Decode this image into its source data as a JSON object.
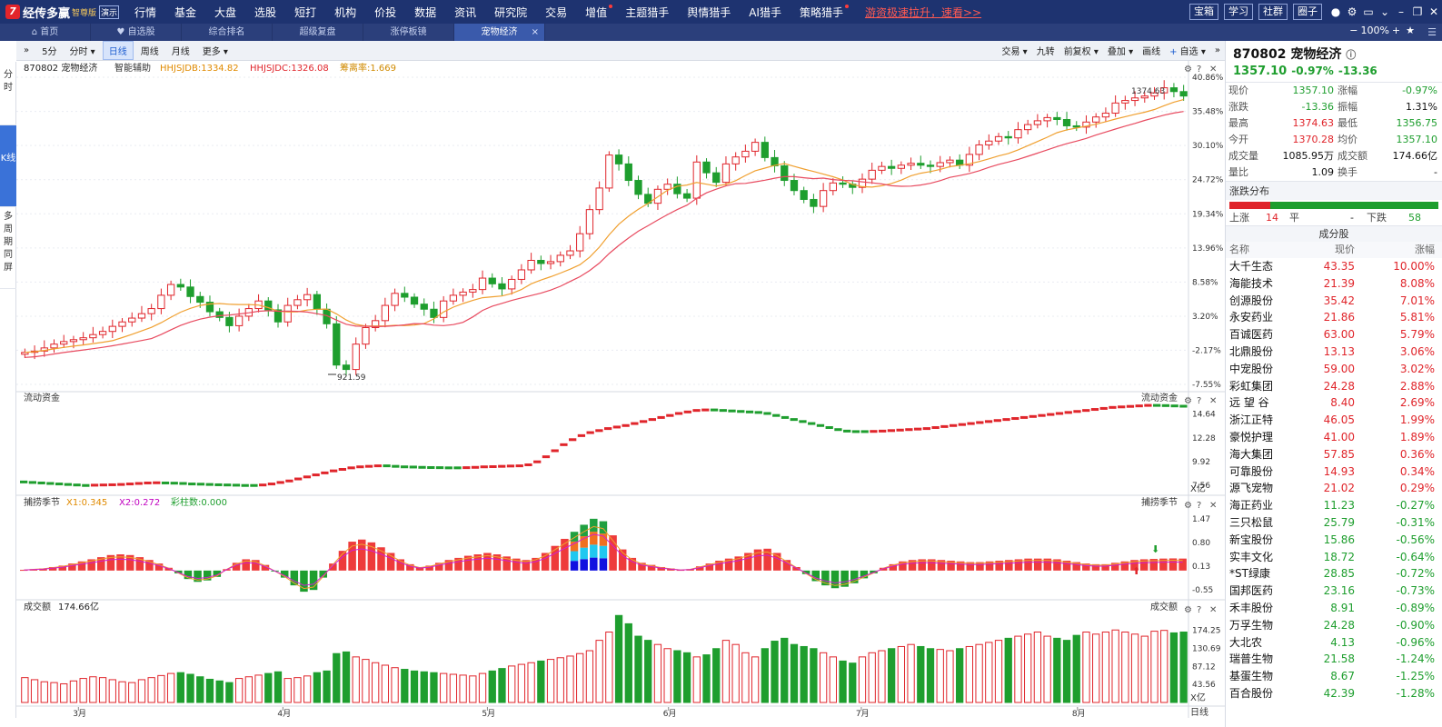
{
  "app": {
    "logo_mark": "7",
    "name": "经传多赢",
    "edition": "智尊版",
    "demo": "演示",
    "nav": [
      "行情",
      "基金",
      "大盘",
      "选股",
      "短打",
      "机构",
      "价投",
      "数据",
      "资讯",
      "研究院",
      "交易",
      "增值",
      "主题猎手",
      "舆情猎手",
      "AI猎手",
      "策略猎手"
    ],
    "promo": "游资极速拉升，速看>>",
    "right_buttons": [
      "宝箱",
      "学习",
      "社群",
      "圈子"
    ],
    "zoom": "100%"
  },
  "tabs": [
    {
      "label": "首页",
      "icon": "home-icon"
    },
    {
      "label": "自选股",
      "icon": "heart-icon"
    },
    {
      "label": "综合排名"
    },
    {
      "label": "超级复盘"
    },
    {
      "label": "涨停板镜"
    },
    {
      "label": "宠物经济",
      "active": true,
      "close": "×"
    }
  ],
  "left_tabs": [
    "分时",
    "K线",
    "多周期同屏"
  ],
  "chart_toolbar": {
    "left": [
      "5分",
      "分时",
      "日线",
      "周线",
      "月线",
      "更多"
    ],
    "right": [
      "交易",
      "九转",
      "前复权",
      "叠加",
      "画线",
      "自选"
    ]
  },
  "main_panel": {
    "code_name": "870802 宠物经济",
    "helper": "智能辅助",
    "ind1": "HHJSJDB:1334.82",
    "ind2": "HHJSJDC:1326.08",
    "ind3": "筹离率:1.669",
    "y_ticks": [
      "40.86%",
      "35.48%",
      "30.10%",
      "24.72%",
      "19.34%",
      "13.96%",
      "8.58%",
      "3.20%",
      "-2.17%",
      "-7.55%"
    ],
    "high_label": "1374.63",
    "low_label": "921.59"
  },
  "flow_panel": {
    "title": "流动资金",
    "title_right": "流动资金",
    "y_ticks": [
      "14.64",
      "12.28",
      "9.92",
      "7.56"
    ],
    "unit": "X亿"
  },
  "season_panel": {
    "title": "捕捞季节",
    "x1": "X1:0.345",
    "x2": "X2:0.272",
    "cz": "彩柱数:0.000",
    "title_right": "捕捞季节",
    "y_ticks": [
      "1.47",
      "0.80",
      "0.13",
      "-0.55"
    ]
  },
  "volume_panel": {
    "title": "成交额",
    "value": "174.66亿",
    "title_right": "成交额",
    "y_ticks": [
      "174.25",
      "130.69",
      "87.12",
      "43.56"
    ],
    "unit": "X亿"
  },
  "x_axis": {
    "months": [
      "3月",
      "4月",
      "5月",
      "6月",
      "7月",
      "8月"
    ],
    "period": "日线"
  },
  "chart_data": {
    "type": "candlestick",
    "x_label_months": [
      "3月",
      "4月",
      "5月",
      "6月",
      "7月",
      "8月"
    ],
    "price_axis_percent": [
      40.86,
      35.48,
      30.1,
      24.72,
      19.34,
      13.96,
      8.58,
      3.2,
      -2.17,
      -7.55
    ],
    "max_price": 1374.63,
    "min_price": 921.59,
    "candles_close_pct": [
      -2.5,
      -2.3,
      -1.8,
      -1.2,
      -0.8,
      -0.5,
      -0.2,
      0.3,
      0.8,
      1.6,
      2.3,
      2.9,
      3.6,
      4.4,
      6.5,
      8.2,
      7.8,
      6.3,
      5.4,
      3.9,
      3.0,
      1.7,
      3.2,
      4.4,
      5.6,
      4.2,
      2.3,
      4.9,
      5.8,
      6.6,
      4.3,
      2.0,
      -4.5,
      -5.2,
      -1.2,
      1.4,
      2.5,
      4.9,
      6.8,
      6.2,
      5.1,
      4.3,
      3.0,
      5.6,
      6.5,
      7.0,
      7.4,
      9.2,
      8.3,
      7.5,
      9.0,
      10.5,
      12.0,
      11.5,
      11.8,
      12.8,
      13.5,
      16.2,
      20.0,
      23.4,
      28.6,
      27.2,
      24.6,
      22.4,
      21.0,
      23.2,
      24.0,
      22.5,
      21.8,
      27.5,
      25.8,
      24.3,
      27.2,
      28.3,
      29.2,
      30.6,
      28.2,
      26.9,
      24.6,
      23.0,
      21.6,
      20.5,
      23.0,
      24.2,
      24.0,
      23.5,
      24.8,
      26.2,
      26.8,
      26.5,
      27.0,
      27.3,
      27.0,
      26.8,
      27.4,
      27.8,
      27.0,
      28.7,
      30.2,
      30.8,
      31.5,
      31.3,
      32.6,
      33.4,
      34.0,
      34.5,
      34.2,
      33.2,
      33.0,
      33.8,
      34.6,
      35.2,
      36.8,
      37.2,
      37.6,
      37.9,
      38.4,
      39.2,
      38.6,
      37.9
    ],
    "flow_values": [
      7.9,
      7.85,
      7.8,
      7.75,
      7.7,
      7.65,
      7.6,
      7.55,
      7.58,
      7.6,
      7.62,
      7.65,
      7.7,
      7.75,
      7.8,
      7.82,
      7.8,
      7.78,
      7.75,
      7.7,
      7.68,
      7.65,
      7.62,
      7.6,
      7.58,
      7.55,
      7.55,
      7.6,
      7.7,
      7.85,
      8.0,
      8.2,
      8.4,
      8.6,
      8.8,
      9.0,
      9.15,
      9.3,
      9.4,
      9.45,
      9.5,
      9.5,
      9.45,
      9.4,
      9.38,
      9.35,
      9.33,
      9.32,
      9.3,
      9.3,
      9.32,
      9.35,
      9.4,
      9.42,
      9.45,
      9.48,
      9.5,
      9.6,
      9.9,
      10.4,
      11.0,
      11.6,
      12.1,
      12.5,
      12.8,
      13.0,
      13.2,
      13.35,
      13.5,
      13.7,
      13.9,
      14.1,
      14.3,
      14.5,
      14.7,
      14.85,
      15.0,
      15.05,
      15.05,
      15.0,
      14.95,
      14.9,
      14.85,
      14.8,
      14.7,
      14.5,
      14.3,
      14.1,
      13.9,
      13.7,
      13.5,
      13.3,
      13.1,
      12.95,
      12.9,
      12.9,
      12.92,
      12.95,
      13.0,
      13.05,
      13.1,
      13.15,
      13.2,
      13.3,
      13.4,
      13.5,
      13.6,
      13.7,
      13.8,
      13.9,
      14.0,
      14.1,
      14.2,
      14.3,
      14.4,
      14.5,
      14.6,
      14.7,
      14.8,
      14.9,
      15.0,
      15.1,
      15.2,
      15.3,
      15.35,
      15.4,
      15.45,
      15.5,
      15.5,
      15.48,
      15.45,
      15.42
    ],
    "season_values": [
      0.02,
      0.04,
      0.06,
      0.1,
      0.14,
      0.2,
      0.26,
      0.32,
      0.38,
      0.44,
      0.46,
      0.44,
      0.38,
      0.3,
      0.2,
      0.08,
      -0.08,
      -0.24,
      -0.32,
      -0.28,
      -0.18,
      0.04,
      0.22,
      0.32,
      0.3,
      0.16,
      -0.02,
      -0.2,
      -0.42,
      -0.6,
      -0.55,
      -0.2,
      0.2,
      0.56,
      0.82,
      0.88,
      0.8,
      0.66,
      0.5,
      0.32,
      0.18,
      0.1,
      0.14,
      0.22,
      0.3,
      0.36,
      0.42,
      0.46,
      0.5,
      0.46,
      0.4,
      0.34,
      0.3,
      0.36,
      0.5,
      0.7,
      0.9,
      1.1,
      1.3,
      1.47,
      1.4,
      1.0,
      0.6,
      0.36,
      0.22,
      0.16,
      0.1,
      0.06,
      0.02,
      0.04,
      0.12,
      0.2,
      0.28,
      0.34,
      0.4,
      0.5,
      0.6,
      0.62,
      0.5,
      0.3,
      0.1,
      -0.1,
      -0.3,
      -0.42,
      -0.5,
      -0.46,
      -0.36,
      -0.22,
      -0.08,
      0.08,
      0.18,
      0.26,
      0.3,
      0.32,
      0.32,
      0.3,
      0.28,
      0.26,
      0.24,
      0.24,
      0.26,
      0.28,
      0.3,
      0.32,
      0.34,
      0.34,
      0.34,
      0.32,
      0.28,
      0.24,
      0.2,
      0.18,
      0.18,
      0.22,
      0.26,
      0.3,
      0.32,
      0.33,
      0.34,
      0.345,
      0.34
    ],
    "volume_values": [
      60,
      55,
      50,
      48,
      45,
      52,
      58,
      62,
      60,
      55,
      50,
      48,
      55,
      60,
      65,
      70,
      72,
      68,
      62,
      56,
      52,
      48,
      58,
      62,
      66,
      70,
      74,
      58,
      60,
      64,
      72,
      76,
      118,
      122,
      110,
      104,
      96,
      90,
      84,
      80,
      76,
      74,
      72,
      70,
      68,
      66,
      64,
      70,
      76,
      82,
      88,
      92,
      96,
      100,
      104,
      108,
      112,
      118,
      125,
      150,
      170,
      210,
      190,
      160,
      150,
      140,
      130,
      125,
      120,
      110,
      115,
      130,
      150,
      140,
      120,
      110,
      130,
      148,
      155,
      140,
      135,
      130,
      120,
      110,
      100,
      95,
      110,
      120,
      125,
      130,
      135,
      140,
      135,
      130,
      128,
      125,
      130,
      135,
      140,
      145,
      150,
      155,
      160,
      165,
      170,
      160,
      155,
      150,
      162,
      170,
      165,
      170,
      175,
      170,
      165,
      160,
      172,
      174,
      168,
      170
    ]
  },
  "quote": {
    "title": "870802 宠物经济",
    "price": "1357.10",
    "pct": "-0.97%",
    "chg": "-13.36",
    "rows": [
      {
        "k": "现价",
        "v": "1357.10",
        "vc": "green",
        "k2": "涨幅",
        "v2": "-0.97%",
        "v2c": "green"
      },
      {
        "k": "涨跌",
        "v": "-13.36",
        "vc": "green",
        "k2": "振幅",
        "v2": "1.31%",
        "v2c": "black"
      },
      {
        "k": "最高",
        "v": "1374.63",
        "vc": "red",
        "k2": "最低",
        "v2": "1356.75",
        "v2c": "green"
      },
      {
        "k": "今开",
        "v": "1370.28",
        "vc": "red",
        "k2": "均价",
        "v2": "1357.10",
        "v2c": "green"
      },
      {
        "k": "成交量",
        "v": "1085.95万",
        "vc": "black",
        "k2": "成交额",
        "v2": "174.66亿",
        "v2c": "black"
      },
      {
        "k": "量比",
        "v": "1.09",
        "vc": "black",
        "k2": "换手",
        "v2": "-",
        "v2c": "black"
      }
    ]
  },
  "dist": {
    "title": "涨跌分布",
    "up_label": "上涨",
    "up": "14",
    "flat_label": "平",
    "flat": "-",
    "down_label": "下跌",
    "down": "58"
  },
  "constituents": {
    "title": "成分股",
    "headers": [
      "名称",
      "现价",
      "涨幅"
    ],
    "rows": [
      [
        "大千生态",
        "43.35",
        "10.00%"
      ],
      [
        "海能技术",
        "21.39",
        "8.08%"
      ],
      [
        "创源股份",
        "35.42",
        "7.01%"
      ],
      [
        "永安药业",
        "21.86",
        "5.81%"
      ],
      [
        "百诚医药",
        "63.00",
        "5.79%"
      ],
      [
        "北鼎股份",
        "13.13",
        "3.06%"
      ],
      [
        "中宠股份",
        "59.00",
        "3.02%"
      ],
      [
        "彩虹集团",
        "24.28",
        "2.88%"
      ],
      [
        "远 望 谷",
        "8.40",
        "2.69%"
      ],
      [
        "浙江正特",
        "46.05",
        "1.99%"
      ],
      [
        "豪悦护理",
        "41.00",
        "1.89%"
      ],
      [
        "海大集团",
        "57.85",
        "0.36%"
      ],
      [
        "可靠股份",
        "14.93",
        "0.34%"
      ],
      [
        "源飞宠物",
        "21.02",
        "0.29%"
      ],
      [
        "海正药业",
        "11.23",
        "-0.27%"
      ],
      [
        "三只松鼠",
        "25.79",
        "-0.31%"
      ],
      [
        "新宝股份",
        "15.86",
        "-0.56%"
      ],
      [
        "实丰文化",
        "18.72",
        "-0.64%"
      ],
      [
        "*ST绿康",
        "28.85",
        "-0.72%"
      ],
      [
        "国邦医药",
        "23.16",
        "-0.73%"
      ],
      [
        "禾丰股份",
        "8.91",
        "-0.89%"
      ],
      [
        "万孚生物",
        "24.28",
        "-0.90%"
      ],
      [
        "大北农",
        "4.13",
        "-0.96%"
      ],
      [
        "瑞普生物",
        "21.58",
        "-1.24%"
      ],
      [
        "基蛋生物",
        "8.67",
        "-1.25%"
      ],
      [
        "百合股份",
        "42.39",
        "-1.28%"
      ]
    ]
  },
  "colors": {
    "up": "#e0252b",
    "down": "#1e9e2e",
    "nav": "#1e3370",
    "accent": "#3a72d8"
  }
}
